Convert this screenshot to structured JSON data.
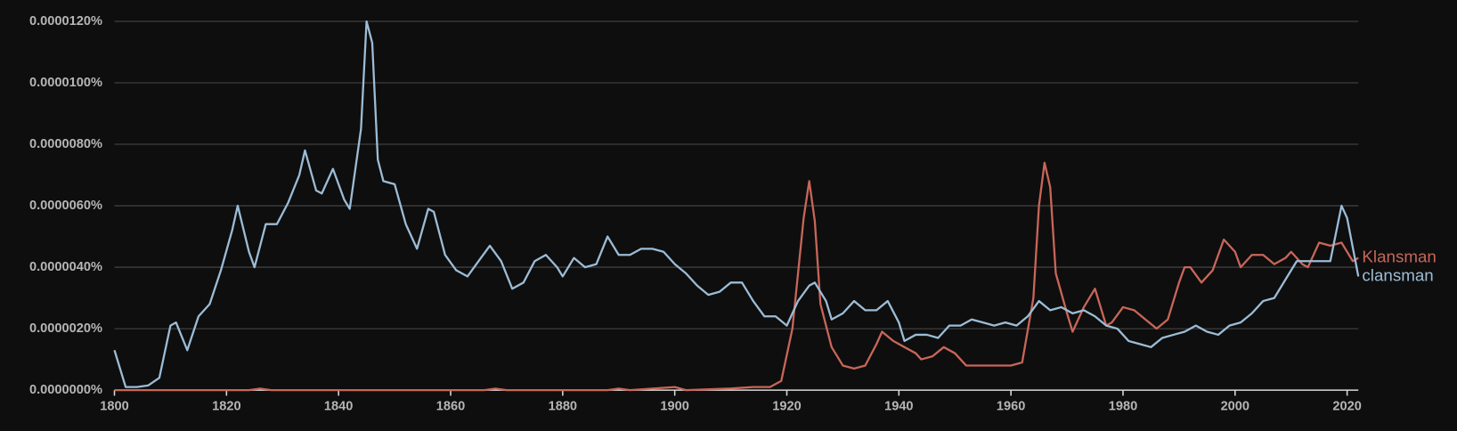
{
  "chart_data": {
    "type": "line",
    "xlim": [
      1800,
      2022
    ],
    "xticks": [
      1800,
      1820,
      1840,
      1860,
      1880,
      1900,
      1920,
      1940,
      1960,
      1980,
      2000,
      2020
    ],
    "ylim": [
      0,
      1.2e-05
    ],
    "yticks": [
      {
        "value": 0,
        "label": "0.0000000%"
      },
      {
        "value": 2e-06,
        "label": "0.0000020%"
      },
      {
        "value": 4e-06,
        "label": "0.0000040%"
      },
      {
        "value": 6e-06,
        "label": "0.0000060%"
      },
      {
        "value": 8e-06,
        "label": "0.0000080%"
      },
      {
        "value": 1e-05,
        "label": "0.0000100%"
      },
      {
        "value": 1.2e-05,
        "label": "0.0000120%"
      }
    ],
    "grid": true,
    "series": [
      {
        "name": "Klansman",
        "color": "#c8665a",
        "x": [
          1800,
          1824,
          1826,
          1828,
          1866,
          1868,
          1870,
          1888,
          1890,
          1892,
          1900,
          1902,
          1910,
          1914,
          1917,
          1919,
          1921,
          1923,
          1924,
          1925,
          1926,
          1928,
          1930,
          1932,
          1934,
          1936,
          1937,
          1939,
          1941,
          1943,
          1944,
          1946,
          1948,
          1950,
          1952,
          1954,
          1956,
          1958,
          1960,
          1962,
          1964,
          1965,
          1966,
          1967,
          1968,
          1970,
          1971,
          1973,
          1975,
          1977,
          1978,
          1980,
          1982,
          1984,
          1986,
          1988,
          1990,
          1991,
          1992,
          1994,
          1996,
          1998,
          2000,
          2001,
          2003,
          2005,
          2007,
          2009,
          2010,
          2012,
          2013,
          2015,
          2017,
          2019,
          2021,
          2022
        ],
        "values": [
          0,
          0,
          5e-08,
          0,
          0,
          5e-08,
          0,
          0,
          5e-08,
          0,
          1e-07,
          0,
          5e-08,
          1e-07,
          1e-07,
          3e-07,
          2e-06,
          5.6e-06,
          6.8e-06,
          5.5e-06,
          2.8e-06,
          1.4e-06,
          8e-07,
          7e-07,
          8e-07,
          1.5e-06,
          1.9e-06,
          1.6e-06,
          1.4e-06,
          1.2e-06,
          1e-06,
          1.1e-06,
          1.4e-06,
          1.2e-06,
          8e-07,
          8e-07,
          8e-07,
          8e-07,
          8e-07,
          9e-07,
          3e-06,
          6e-06,
          7.4e-06,
          6.6e-06,
          3.8e-06,
          2.5e-06,
          1.9e-06,
          2.7e-06,
          3.3e-06,
          2.1e-06,
          2.2e-06,
          2.7e-06,
          2.6e-06,
          2.3e-06,
          2e-06,
          2.3e-06,
          3.5e-06,
          4e-06,
          4e-06,
          3.5e-06,
          3.9e-06,
          4.9e-06,
          4.5e-06,
          4e-06,
          4.4e-06,
          4.4e-06,
          4.1e-06,
          4.3e-06,
          4.5e-06,
          4.1e-06,
          4e-06,
          4.8e-06,
          4.7e-06,
          4.8e-06,
          4.2e-06,
          4.3e-06
        ]
      },
      {
        "name": "clansman",
        "color": "#9cbcd6",
        "x": [
          1800,
          1802,
          1804,
          1806,
          1808,
          1810,
          1811,
          1813,
          1815,
          1817,
          1819,
          1821,
          1822,
          1824,
          1825,
          1827,
          1829,
          1831,
          1833,
          1834,
          1836,
          1837,
          1839,
          1841,
          1842,
          1844,
          1845,
          1846,
          1847,
          1848,
          1850,
          1852,
          1854,
          1856,
          1857,
          1859,
          1861,
          1863,
          1865,
          1867,
          1869,
          1871,
          1873,
          1875,
          1877,
          1879,
          1880,
          1882,
          1884,
          1886,
          1888,
          1890,
          1892,
          1894,
          1896,
          1898,
          1900,
          1902,
          1904,
          1906,
          1908,
          1910,
          1912,
          1914,
          1916,
          1918,
          1920,
          1922,
          1924,
          1925,
          1927,
          1928,
          1930,
          1932,
          1934,
          1936,
          1938,
          1940,
          1941,
          1943,
          1945,
          1947,
          1949,
          1951,
          1953,
          1955,
          1957,
          1959,
          1961,
          1963,
          1965,
          1967,
          1969,
          1971,
          1973,
          1975,
          1977,
          1979,
          1981,
          1983,
          1985,
          1987,
          1989,
          1991,
          1993,
          1995,
          1997,
          1999,
          2001,
          2003,
          2005,
          2007,
          2009,
          2011,
          2013,
          2015,
          2017,
          2019,
          2020,
          2022
        ],
        "values": [
          1.3e-06,
          1e-07,
          1e-07,
          1.5e-07,
          4e-07,
          2.1e-06,
          2.2e-06,
          1.3e-06,
          2.4e-06,
          2.8e-06,
          3.9e-06,
          5.2e-06,
          6e-06,
          4.5e-06,
          4e-06,
          5.4e-06,
          5.4e-06,
          6.1e-06,
          7e-06,
          7.8e-06,
          6.5e-06,
          6.4e-06,
          7.2e-06,
          6.2e-06,
          5.9e-06,
          8.5e-06,
          1.2e-05,
          1.13e-05,
          7.5e-06,
          6.8e-06,
          6.7e-06,
          5.4e-06,
          4.6e-06,
          5.9e-06,
          5.8e-06,
          4.4e-06,
          3.9e-06,
          3.7e-06,
          4.2e-06,
          4.7e-06,
          4.2e-06,
          3.3e-06,
          3.5e-06,
          4.2e-06,
          4.4e-06,
          4e-06,
          3.7e-06,
          4.3e-06,
          4e-06,
          4.1e-06,
          5e-06,
          4.4e-06,
          4.4e-06,
          4.6e-06,
          4.6e-06,
          4.5e-06,
          4.1e-06,
          3.8e-06,
          3.4e-06,
          3.1e-06,
          3.2e-06,
          3.5e-06,
          3.5e-06,
          2.9e-06,
          2.4e-06,
          2.4e-06,
          2.1e-06,
          2.9e-06,
          3.4e-06,
          3.5e-06,
          2.9e-06,
          2.3e-06,
          2.5e-06,
          2.9e-06,
          2.6e-06,
          2.6e-06,
          2.9e-06,
          2.2e-06,
          1.6e-06,
          1.8e-06,
          1.8e-06,
          1.7e-06,
          2.1e-06,
          2.1e-06,
          2.3e-06,
          2.2e-06,
          2.1e-06,
          2.2e-06,
          2.1e-06,
          2.4e-06,
          2.9e-06,
          2.6e-06,
          2.7e-06,
          2.5e-06,
          2.6e-06,
          2.4e-06,
          2.1e-06,
          2e-06,
          1.6e-06,
          1.5e-06,
          1.4e-06,
          1.7e-06,
          1.8e-06,
          1.9e-06,
          2.1e-06,
          1.9e-06,
          1.8e-06,
          2.1e-06,
          2.2e-06,
          2.5e-06,
          2.9e-06,
          3e-06,
          3.6e-06,
          4.2e-06,
          4.2e-06,
          4.2e-06,
          4.2e-06,
          6e-06,
          5.6e-06,
          3.7e-06
        ]
      }
    ]
  }
}
